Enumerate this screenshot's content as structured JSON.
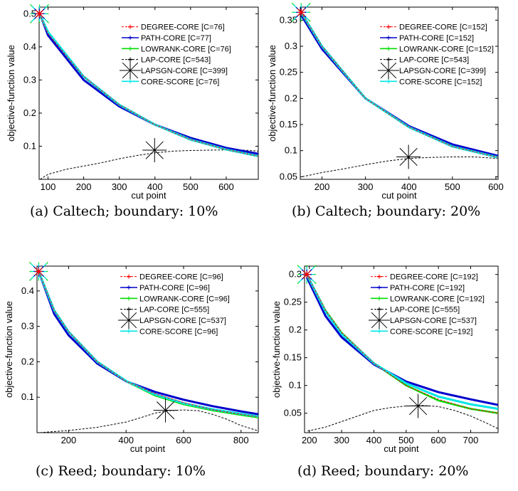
{
  "chart_data": [
    {
      "type": "line",
      "caption": "(a) Caltech; boundary: 10%",
      "xlabel": "cut point",
      "ylabel": "objective-function value",
      "xlim": [
        75,
        690
      ],
      "ylim": [
        0,
        0.52
      ],
      "xticks": [
        100,
        200,
        300,
        400,
        500,
        600
      ],
      "xtick_labels": [
        "100",
        "200",
        "300",
        "400",
        "500",
        "600"
      ],
      "yticks": [
        0.1,
        0.2,
        0.3,
        0.4,
        0.5
      ],
      "ytick_labels": [
        "0.1",
        "0.2",
        "0.3",
        "0.4",
        "0.5"
      ],
      "legend_position": "top-right",
      "series": [
        {
          "name": "DEGREE-CORE [C=76]",
          "color": "#ff0000",
          "style": "dashed",
          "x": [
            76,
            100,
            200,
            300,
            400,
            500,
            600,
            690
          ],
          "y": [
            0.5,
            0.44,
            0.31,
            0.225,
            0.165,
            0.12,
            0.09,
            0.07
          ]
        },
        {
          "name": "PATH-CORE [C=77]",
          "color": "#0000cc",
          "style": "solid",
          "x": [
            77,
            100,
            200,
            300,
            400,
            500,
            600,
            690
          ],
          "y": [
            0.5,
            0.435,
            0.3,
            0.22,
            0.165,
            0.125,
            0.095,
            0.077
          ]
        },
        {
          "name": "LOWRANK-CORE [C=76]",
          "color": "#00dd00",
          "style": "solid",
          "x": [
            76,
            100,
            200,
            300,
            400,
            500,
            600,
            690
          ],
          "y": [
            0.5,
            0.445,
            0.31,
            0.225,
            0.165,
            0.12,
            0.09,
            0.07
          ]
        },
        {
          "name": "LAP-CORE [C=543]",
          "color": "#000000",
          "style": "dashed",
          "x": [
            78,
            100,
            150,
            200,
            250,
            300,
            350,
            400,
            450,
            500,
            550,
            600,
            650,
            690
          ],
          "y": [
            0.0,
            0.015,
            0.03,
            0.04,
            0.05,
            0.062,
            0.072,
            0.08,
            0.085,
            0.087,
            0.088,
            0.089,
            0.088,
            0.085
          ]
        },
        {
          "name": "LAPSGN-CORE [C=399]",
          "color": "#000000",
          "style": "marker",
          "x": [
            399
          ],
          "y": [
            0.088
          ]
        },
        {
          "name": "CORE-SCORE [C=76]",
          "color": "#00e5e5",
          "style": "solid",
          "x": [
            76,
            100,
            200,
            300,
            400,
            500,
            600,
            690
          ],
          "y": [
            0.5,
            0.445,
            0.31,
            0.225,
            0.165,
            0.12,
            0.09,
            0.07
          ]
        }
      ]
    },
    {
      "type": "line",
      "caption": "(b) Caltech; boundary: 20%",
      "xlabel": "cut point",
      "ylabel": "objective-function value",
      "xlim": [
        150,
        605
      ],
      "ylim": [
        0.045,
        0.375
      ],
      "xticks": [
        200,
        300,
        400,
        500,
        600
      ],
      "xtick_labels": [
        "200",
        "300",
        "400",
        "500",
        "600"
      ],
      "yticks": [
        0.05,
        0.1,
        0.15,
        0.2,
        0.25,
        0.3,
        0.35
      ],
      "ytick_labels": [
        "0.05",
        "0.1",
        "0.15",
        "0.2",
        "0.25",
        "0.3",
        "0.35"
      ],
      "legend_position": "top-right",
      "series": [
        {
          "name": "DEGREE-CORE [C=152]",
          "color": "#ff0000",
          "style": "dashed",
          "x": [
            152,
            200,
            300,
            400,
            500,
            605
          ],
          "y": [
            0.365,
            0.3,
            0.2,
            0.145,
            0.108,
            0.087
          ]
        },
        {
          "name": "PATH-CORE [C=152]",
          "color": "#0000cc",
          "style": "solid",
          "x": [
            152,
            200,
            300,
            400,
            500,
            605
          ],
          "y": [
            0.36,
            0.295,
            0.2,
            0.147,
            0.112,
            0.09
          ]
        },
        {
          "name": "LOWRANK-CORE [C=152]",
          "color": "#00dd00",
          "style": "solid",
          "x": [
            152,
            200,
            300,
            400,
            500,
            605
          ],
          "y": [
            0.365,
            0.3,
            0.2,
            0.145,
            0.108,
            0.087
          ]
        },
        {
          "name": "LAP-CORE [C=543]",
          "color": "#000000",
          "style": "dashed",
          "x": [
            155,
            200,
            250,
            300,
            350,
            400,
            450,
            500,
            550,
            605
          ],
          "y": [
            0.05,
            0.058,
            0.065,
            0.073,
            0.08,
            0.085,
            0.087,
            0.088,
            0.088,
            0.085
          ]
        },
        {
          "name": "LAPSGN-CORE [C=399]",
          "color": "#000000",
          "style": "marker",
          "x": [
            399
          ],
          "y": [
            0.088
          ]
        },
        {
          "name": "CORE-SCORE [C=152]",
          "color": "#00e5e5",
          "style": "solid",
          "x": [
            152,
            200,
            300,
            400,
            500,
            605
          ],
          "y": [
            0.365,
            0.3,
            0.2,
            0.145,
            0.108,
            0.087
          ]
        }
      ]
    },
    {
      "type": "line",
      "caption": "(c) Reed; boundary: 10%",
      "xlabel": "cut point",
      "ylabel": "objective-function value",
      "xlim": [
        90,
        860
      ],
      "ylim": [
        0,
        0.47
      ],
      "xticks": [
        200,
        400,
        600,
        800
      ],
      "xtick_labels": [
        "200",
        "400",
        "600",
        "800"
      ],
      "yticks": [
        0.1,
        0.2,
        0.3,
        0.4
      ],
      "ytick_labels": [
        "0.1",
        "0.2",
        "0.3",
        "0.4"
      ],
      "legend_position": "top-right",
      "series": [
        {
          "name": "DEGREE-CORE [C=96]",
          "color": "#ff0000",
          "style": "dashed",
          "x": [
            96,
            150,
            200,
            300,
            400,
            500,
            600,
            700,
            800,
            860
          ],
          "y": [
            0.455,
            0.345,
            0.285,
            0.2,
            0.145,
            0.11,
            0.085,
            0.065,
            0.052,
            0.045
          ]
        },
        {
          "name": "PATH-CORE [C=96]",
          "color": "#0000cc",
          "style": "solid",
          "x": [
            96,
            150,
            200,
            300,
            400,
            500,
            600,
            700,
            800,
            860
          ],
          "y": [
            0.455,
            0.335,
            0.275,
            0.195,
            0.145,
            0.115,
            0.093,
            0.075,
            0.06,
            0.052
          ]
        },
        {
          "name": "LOWRANK-CORE [C=96]",
          "color": "#00dd00",
          "style": "solid",
          "x": [
            96,
            150,
            200,
            300,
            400,
            500,
            600,
            700,
            800,
            860
          ],
          "y": [
            0.455,
            0.345,
            0.285,
            0.2,
            0.145,
            0.105,
            0.08,
            0.063,
            0.05,
            0.043
          ]
        },
        {
          "name": "LAP-CORE [C=555]",
          "color": "#000000",
          "style": "dashed",
          "x": [
            100,
            150,
            200,
            300,
            400,
            450,
            500,
            550,
            600,
            650,
            700,
            750,
            800,
            860
          ],
          "y": [
            0.0,
            0.003,
            0.006,
            0.015,
            0.03,
            0.042,
            0.055,
            0.062,
            0.064,
            0.062,
            0.052,
            0.038,
            0.02,
            0.005
          ]
        },
        {
          "name": "LAPSGN-CORE [C=537]",
          "color": "#000000",
          "style": "marker",
          "x": [
            537
          ],
          "y": [
            0.063
          ]
        },
        {
          "name": "CORE-SCORE [C=96]",
          "color": "#00e5e5",
          "style": "solid",
          "x": [
            96,
            150,
            200,
            300,
            400,
            500,
            600,
            700,
            800,
            860
          ],
          "y": [
            0.455,
            0.345,
            0.285,
            0.2,
            0.146,
            0.108,
            0.083,
            0.066,
            0.053,
            0.046
          ]
        }
      ]
    },
    {
      "type": "line",
      "caption": "(d) Reed; boundary: 20%",
      "xlabel": "cut point",
      "ylabel": "objective-function value",
      "xlim": [
        185,
        785
      ],
      "ylim": [
        0.015,
        0.315
      ],
      "xticks": [
        200,
        300,
        400,
        500,
        600,
        700
      ],
      "xtick_labels": [
        "200",
        "300",
        "400",
        "500",
        "600",
        "700"
      ],
      "yticks": [
        0.05,
        0.1,
        0.15,
        0.2,
        0.25,
        0.3
      ],
      "ytick_labels": [
        "0.05",
        "0.1",
        "0.15",
        "0.2",
        "0.25",
        "0.3"
      ],
      "legend_position": "top-right",
      "series": [
        {
          "name": "DEGREE-CORE [C=192]",
          "color": "#ff0000",
          "style": "dashed",
          "x": [
            192,
            250,
            300,
            400,
            500,
            600,
            700,
            785
          ],
          "y": [
            0.3,
            0.235,
            0.195,
            0.14,
            0.1,
            0.075,
            0.058,
            0.05
          ]
        },
        {
          "name": "PATH-CORE [C=192]",
          "color": "#0000cc",
          "style": "solid",
          "x": [
            192,
            250,
            300,
            400,
            500,
            600,
            700,
            785
          ],
          "y": [
            0.295,
            0.225,
            0.187,
            0.138,
            0.107,
            0.088,
            0.075,
            0.065
          ]
        },
        {
          "name": "LOWRANK-CORE [C=192]",
          "color": "#00dd00",
          "style": "solid",
          "x": [
            192,
            250,
            300,
            400,
            500,
            600,
            700,
            785
          ],
          "y": [
            0.3,
            0.235,
            0.195,
            0.14,
            0.1,
            0.073,
            0.058,
            0.05
          ]
        },
        {
          "name": "LAP-CORE [C=555]",
          "color": "#000000",
          "style": "dashed",
          "x": [
            195,
            250,
            300,
            350,
            400,
            450,
            500,
            550,
            600,
            650,
            700,
            750,
            785
          ],
          "y": [
            0.018,
            0.025,
            0.035,
            0.045,
            0.055,
            0.06,
            0.063,
            0.064,
            0.062,
            0.055,
            0.045,
            0.032,
            0.022
          ]
        },
        {
          "name": "LAPSGN-CORE [C=537]",
          "color": "#000000",
          "style": "marker",
          "x": [
            537
          ],
          "y": [
            0.063
          ]
        },
        {
          "name": "CORE-SCORE [C=192]",
          "color": "#00e5e5",
          "style": "solid",
          "x": [
            192,
            250,
            300,
            400,
            500,
            600,
            700,
            785
          ],
          "y": [
            0.3,
            0.233,
            0.193,
            0.14,
            0.104,
            0.08,
            0.066,
            0.058
          ]
        }
      ]
    }
  ]
}
